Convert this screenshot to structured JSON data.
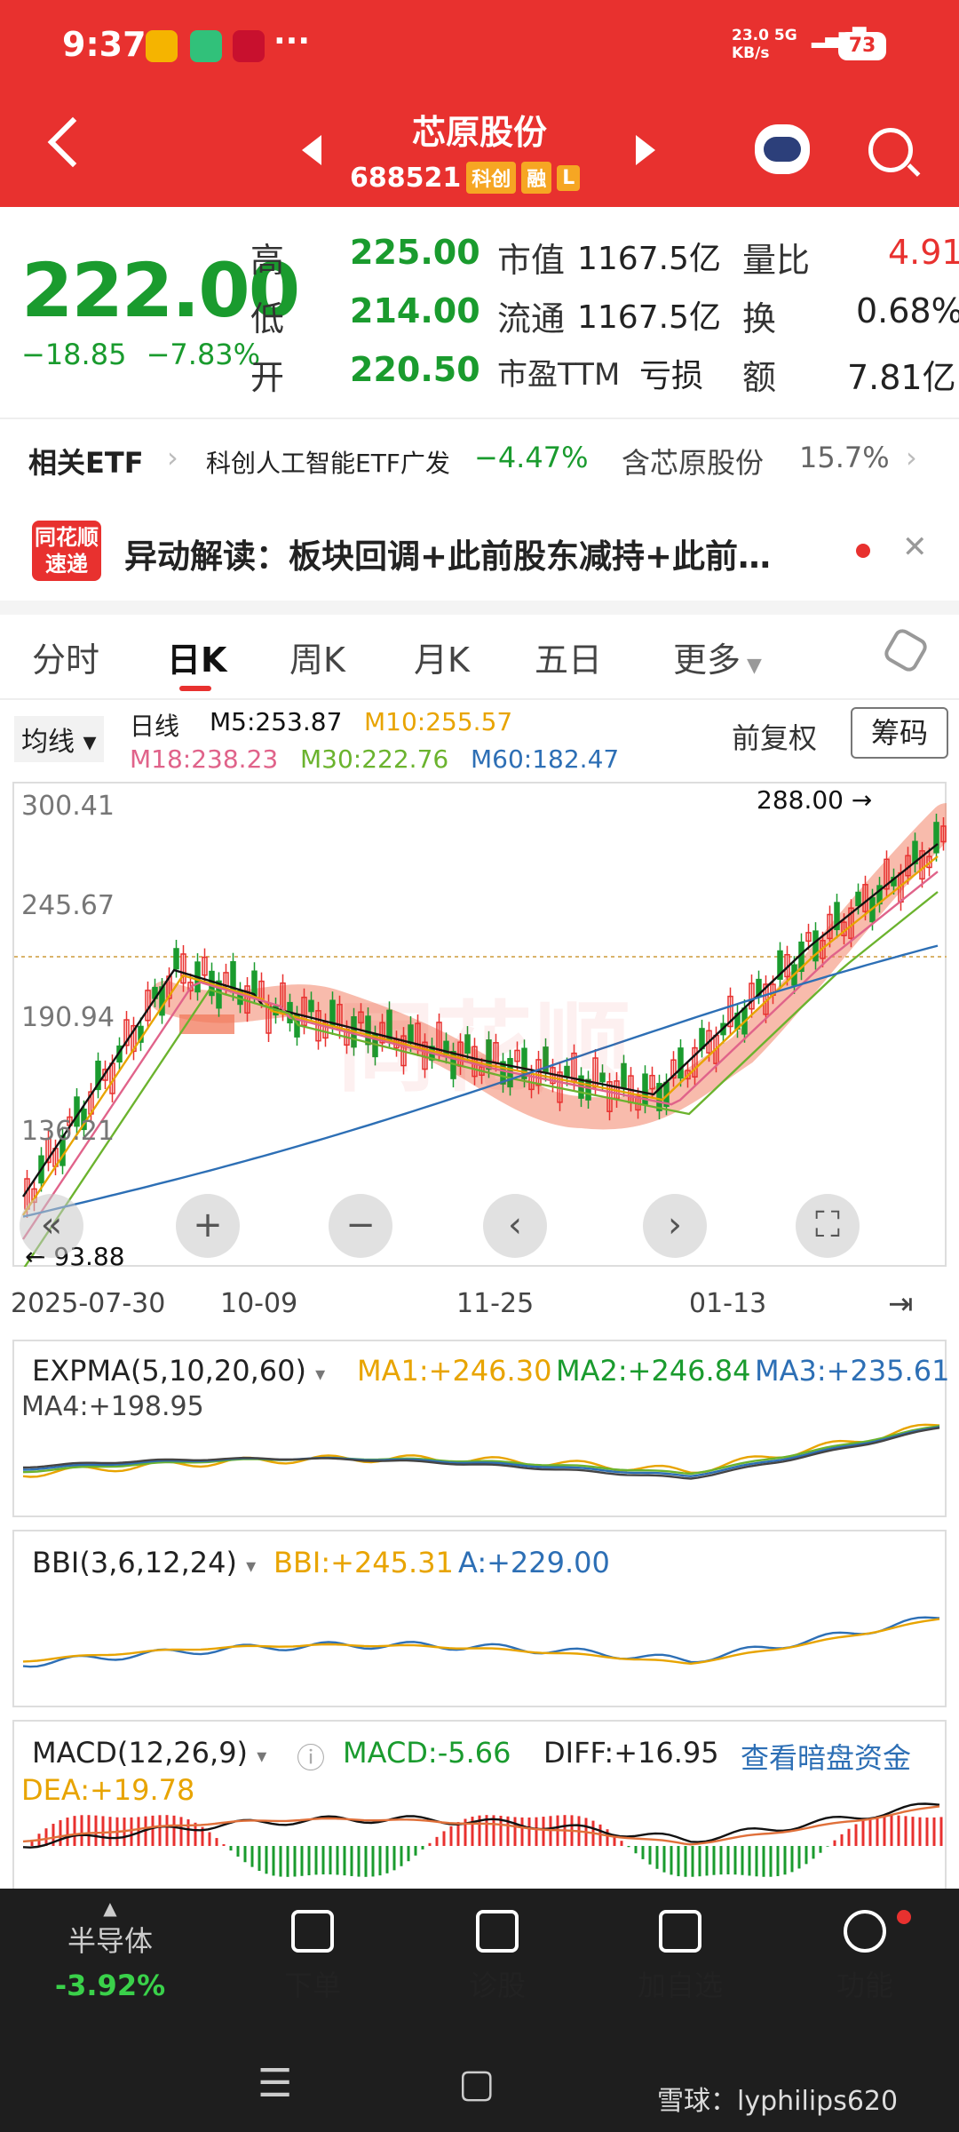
{
  "status_bar": {
    "time": "9:37",
    "dots": "···",
    "net_speed": "23.0",
    "net_unit": "KB/s",
    "network": "5G",
    "battery": "73"
  },
  "header": {
    "name": "芯原股份",
    "code": "688521",
    "tags": [
      "科创",
      "融",
      "L"
    ]
  },
  "quote": {
    "price": "222.00",
    "change": "−18.85",
    "change_pct": "−7.83%",
    "high_label": "高",
    "high": "225.00",
    "low_label": "低",
    "low": "214.00",
    "open_label": "开",
    "open": "220.50",
    "mcap_label": "市值",
    "mcap": "1167.5亿",
    "float_label": "流通",
    "float": "1167.5亿",
    "pe_label": "市盈TTM",
    "pe": "亏损",
    "vol_ratio_label": "量比",
    "vol_ratio": "4.91",
    "turnover_label": "换",
    "turnover": "0.68%",
    "amount_label": "额",
    "amount": "7.81亿"
  },
  "etf": {
    "label": "相关ETF",
    "name": "科创人工智能ETF广发",
    "pct": "−4.47%",
    "hold_label": "含芯原股份",
    "hold": "15.7%"
  },
  "news": {
    "logo_top": "同花顺",
    "logo_bottom": "速递",
    "text": "异动解读：板块回调+此前股东减持+此前…"
  },
  "tabs": [
    "分时",
    "日K",
    "周K",
    "月K",
    "五日",
    "更多"
  ],
  "ma": {
    "selector": "均线",
    "period": "日线",
    "m5": "M5:253.87",
    "m10": "M10:255.57",
    "m18": "M18:238.23",
    "m30": "M30:222.76",
    "m60": "M60:182.47",
    "adj": "前复权",
    "chips": "筹码"
  },
  "kline": {
    "y_labels": [
      "300.41",
      "245.67",
      "190.94",
      "136.21"
    ],
    "high_mark": "288.00",
    "low_mark": "93.88",
    "dates": [
      "2025-07-30",
      "10-09",
      "11-25",
      "01-13"
    ],
    "watermark": "同花顺"
  },
  "expma": {
    "title": "EXPMA(5,10,20,60)",
    "ma1": "MA1:+246.30",
    "ma2": "MA2:+246.84",
    "ma3": "MA3:+235.61",
    "ma4": "MA4:+198.95"
  },
  "bbi": {
    "title": "BBI(3,6,12,24)",
    "bbi": "BBI:+245.31",
    "a": "A:+229.00"
  },
  "macd": {
    "title": "MACD(12,26,9)",
    "macd": "MACD:-5.66",
    "diff": "DIFF:+16.95",
    "link": "查看暗盘资金",
    "dea": "DEA:+19.78"
  },
  "bottom_nav": {
    "sector": "半导体",
    "sector_pct": "-3.92%",
    "items": [
      "下单",
      "诊股",
      "加自选",
      "功能"
    ]
  },
  "footer_credit": "雪球：lyphilips620",
  "colors": {
    "red": "#e8312f",
    "green": "#1a9b2e",
    "m5": "#111111",
    "m10": "#e8a400",
    "m18": "#e0638a",
    "m30": "#6bb32e",
    "m60": "#2d6fb5"
  }
}
